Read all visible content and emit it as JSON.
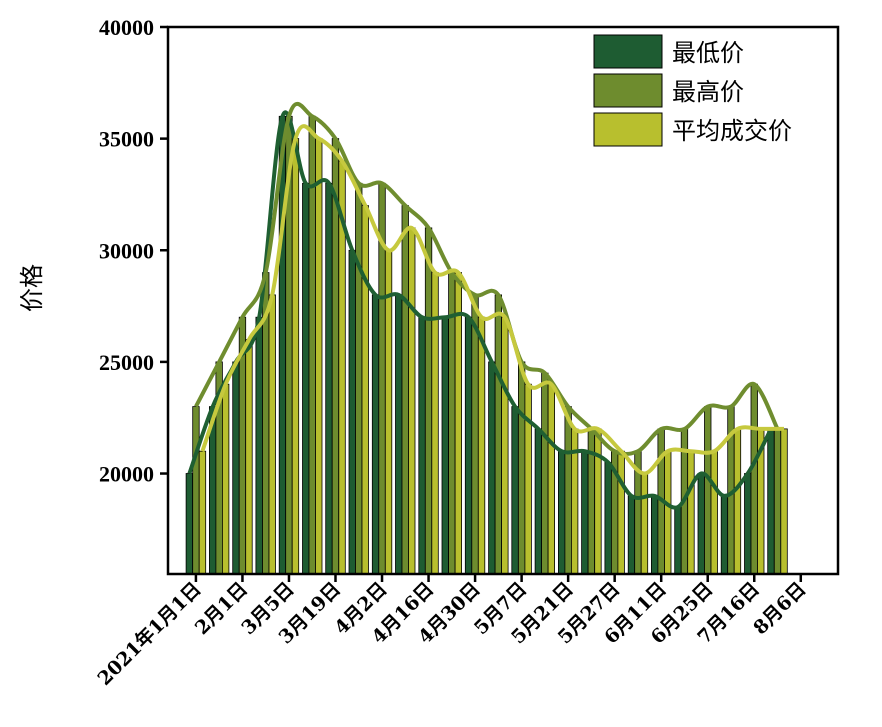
{
  "colors": {
    "low": "#1e5c32",
    "high": "#6e8c2e",
    "avg": "#b8bf2e",
    "low_line": "#1f5f32",
    "high_line": "#6f8d2f",
    "avg_line": "#c6c93e"
  },
  "chart_data": {
    "type": "bar",
    "ylabel": "价格",
    "xlabel": "",
    "title": "",
    "ylim": [
      15500,
      40000
    ],
    "yticks": [
      20000,
      25000,
      30000,
      35000,
      40000
    ],
    "xlim": [
      -1.2,
      27.6
    ],
    "xtick_labels": [
      "2021年1月1日",
      "2月1日",
      "3月5日",
      "3月19日",
      "4月2日",
      "4月16日",
      "4月30日",
      "5月7日",
      "5月21日",
      "5月27日",
      "6月11日",
      "6月25日",
      "7月16日",
      "8月6日"
    ],
    "xtick_positions": [
      0,
      2,
      4,
      6,
      8,
      10,
      12,
      14,
      16,
      18,
      20,
      22,
      24,
      26
    ],
    "legend_position": "top-right",
    "series": [
      {
        "name": "最低价",
        "key": "low",
        "values": [
          20000,
          23000,
          25000,
          27000,
          36000,
          33000,
          33000,
          30000,
          28000,
          28000,
          27000,
          27000,
          27000,
          25000,
          23000,
          22000,
          21000,
          21000,
          20500,
          19000,
          19000,
          18500,
          20000,
          19000,
          20000,
          22000
        ]
      },
      {
        "name": "最高价",
        "key": "high",
        "values": [
          23000,
          25000,
          27000,
          29000,
          36000,
          36000,
          35000,
          33000,
          33000,
          32000,
          31000,
          29000,
          28000,
          28000,
          25000,
          24500,
          23000,
          22000,
          21000,
          21000,
          22000,
          22000,
          23000,
          23000,
          24000,
          22000
        ]
      },
      {
        "name": "平均成交价",
        "key": "avg",
        "values": [
          21000,
          24000,
          26000,
          28000,
          35000,
          35000,
          34000,
          32000,
          30000,
          31000,
          29000,
          29000,
          27000,
          27000,
          24000,
          24000,
          22000,
          22000,
          21000,
          20000,
          21000,
          21000,
          21000,
          22000,
          22000,
          22000
        ]
      }
    ]
  }
}
